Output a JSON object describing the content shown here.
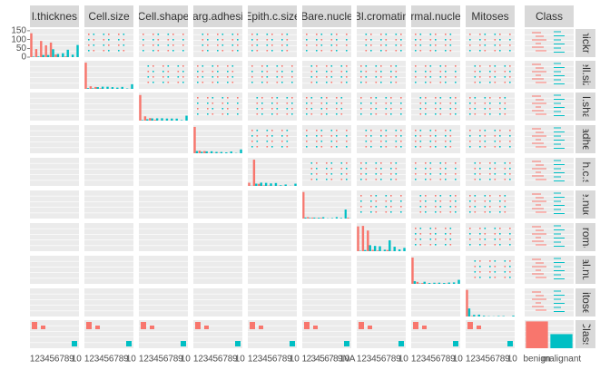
{
  "chart_data": {
    "type": "bar",
    "column_strips": [
      "l.thicknes",
      "Cell.size",
      "Cell.shape",
      "arg.adhesi",
      "Epith.c.size",
      "Bare.nucle",
      "Bl.cromatin",
      "rmal.nucle",
      "Mitoses",
      "Class"
    ],
    "row_strips": [
      "hickn",
      "ell.siz",
      "ll.sha",
      "adhe",
      "th.c.s",
      "e.nuc",
      "croma",
      "al.nu",
      "litose",
      "Class"
    ],
    "panels": [
      {
        "categories": [
          "1",
          "2",
          "3",
          "4",
          "5",
          "6",
          "7",
          "8",
          "9",
          "10"
        ],
        "ylim": [
          0,
          160
        ],
        "yticks": [
          0,
          50,
          100,
          150
        ],
        "series": [
          {
            "color": "#F8766D",
            "values": [
              136,
              46,
              92,
              67,
              83,
              15,
              1,
              4,
              0,
              0
            ]
          },
          {
            "color": "#00BFC4",
            "values": [
              3,
              4,
              12,
              12,
              45,
              18,
              22,
              42,
              14,
              69
            ]
          }
        ]
      },
      {
        "categories": [
          "1",
          "2",
          "3",
          "4",
          "5",
          "6",
          "7",
          "8",
          "9",
          "10"
        ],
        "ylim": [
          0,
          400
        ],
        "series": [
          {
            "color": "#F8766D",
            "values": [
              373,
              37,
              27,
              9,
              0,
              2,
              1,
              1,
              0,
              1
            ]
          },
          {
            "color": "#00BFC4",
            "values": [
              11,
              8,
              25,
              31,
              30,
              25,
              18,
              28,
              6,
              66
            ]
          }
        ]
      },
      {
        "categories": [
          "1",
          "2",
          "3",
          "4",
          "5",
          "6",
          "7",
          "8",
          "9",
          "10"
        ],
        "ylim": [
          0,
          380
        ],
        "series": [
          {
            "color": "#F8766D",
            "values": [
              346,
              58,
              34,
              12,
              2,
              2,
              2,
              1,
              0,
              0
            ]
          },
          {
            "color": "#00BFC4",
            "values": [
              7,
              19,
              30,
              31,
              32,
              28,
              28,
              27,
              7,
              67
            ]
          }
        ]
      },
      {
        "categories": [
          "1",
          "2",
          "3",
          "4",
          "5",
          "6",
          "7",
          "8",
          "9",
          "10"
        ],
        "ylim": [
          0,
          400
        ],
        "series": [
          {
            "color": "#F8766D",
            "values": [
              375,
              37,
              31,
              5,
              4,
              4,
              0,
              0,
              0,
              0
            ]
          },
          {
            "color": "#00BFC4",
            "values": [
              32,
              21,
              27,
              28,
              19,
              18,
              13,
              25,
              4,
              54
            ]
          }
        ]
      },
      {
        "categories": [
          "1",
          "2",
          "3",
          "4",
          "5",
          "6",
          "7",
          "8",
          "9",
          "10"
        ],
        "ylim": [
          0,
          380
        ],
        "series": [
          {
            "color": "#F8766D",
            "values": [
              43,
              355,
              28,
              7,
              5,
              2,
              3,
              2,
              0,
              1
            ]
          },
          {
            "color": "#00BFC4",
            "values": [
              2,
              31,
              44,
              41,
              34,
              39,
              9,
              19,
              2,
              30
            ]
          }
        ]
      },
      {
        "categories": [
          "1",
          "2",
          "3",
          "4",
          "5",
          "6",
          "7",
          "8",
          "9",
          "10",
          "NA"
        ],
        "ylim": [
          0,
          410
        ],
        "series": [
          {
            "color": "#F8766D",
            "values": [
              387,
              21,
              14,
              6,
              10,
              0,
              1,
              0,
              0,
              0,
              14
            ]
          },
          {
            "color": "#00BFC4",
            "values": [
              15,
              9,
              14,
              13,
              20,
              4,
              7,
              21,
              9,
              132,
              2
            ]
          }
        ]
      },
      {
        "categories": [
          "1",
          "2",
          "3",
          "4",
          "5",
          "6",
          "7",
          "8",
          "9",
          "10"
        ],
        "ylim": [
          0,
          170
        ],
        "series": [
          {
            "color": "#F8766D",
            "values": [
              150,
              153,
              125,
              8,
              4,
              1,
              7,
              1,
              0,
              0
            ]
          },
          {
            "color": "#00BFC4",
            "values": [
              2,
              7,
              36,
              32,
              30,
              9,
              66,
              27,
              11,
              20
            ]
          }
        ]
      },
      {
        "categories": [
          "1",
          "2",
          "3",
          "4",
          "5",
          "6",
          "7",
          "8",
          "9",
          "10"
        ],
        "ylim": [
          0,
          430
        ],
        "series": [
          {
            "color": "#F8766D",
            "values": [
              402,
              30,
              12,
              4,
              2,
              4,
              2,
              4,
              0,
              0
            ]
          },
          {
            "color": "#00BFC4",
            "values": [
              41,
              6,
              32,
              14,
              17,
              18,
              14,
              20,
              22,
              61
            ]
          }
        ]
      },
      {
        "categories": [
          "1",
          "2",
          "3",
          "4",
          "5",
          "6",
          "7",
          "8",
          "9",
          "10"
        ],
        "ylim": [
          0,
          470
        ],
        "series": [
          {
            "color": "#F8766D",
            "values": [
              445,
              8,
              2,
              0,
              1,
              0,
              1,
              1,
              0,
              0
            ]
          },
          {
            "color": "#00BFC4",
            "values": [
              134,
              27,
              31,
              12,
              5,
              3,
              8,
              7,
              0,
              14
            ]
          }
        ]
      },
      {
        "categories": [
          "benign",
          "malignant"
        ],
        "ylim": [
          0,
          480
        ],
        "series": [
          {
            "color": "#F8766D",
            "values": [
              458,
              0
            ]
          },
          {
            "color": "#00BFC4",
            "values": [
              0,
              241
            ]
          }
        ]
      }
    ]
  }
}
